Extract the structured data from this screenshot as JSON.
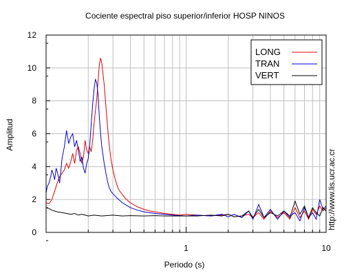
{
  "chart_data": {
    "type": "line",
    "title": "Cociente espectral piso superior/inferior  HOSP NINOS",
    "xlabel": "Periodo (s)",
    "ylabel": "Amplitud",
    "side_label": "http://www.lis.ucr.ac.cr",
    "xscale": "log",
    "xlim": [
      0.1,
      10
    ],
    "ylim": [
      0,
      12
    ],
    "grid": true,
    "legend_position": "top-right",
    "x_tick_labels": [
      {
        "value": 1,
        "label": "1"
      },
      {
        "value": 10,
        "label": "10"
      }
    ],
    "y_tick_labels": [
      {
        "value": 0,
        "label": "0"
      },
      {
        "value": 2,
        "label": "2"
      },
      {
        "value": 4,
        "label": "4"
      },
      {
        "value": 6,
        "label": "6"
      },
      {
        "value": 8,
        "label": "8"
      },
      {
        "value": 10,
        "label": "10"
      },
      {
        "value": 12,
        "label": "12"
      }
    ],
    "series": [
      {
        "name": "LONG",
        "color": "#e00000",
        "x": [
          0.1,
          0.105,
          0.11,
          0.115,
          0.12,
          0.125,
          0.13,
          0.135,
          0.14,
          0.145,
          0.15,
          0.155,
          0.16,
          0.165,
          0.17,
          0.175,
          0.18,
          0.185,
          0.19,
          0.195,
          0.2,
          0.205,
          0.21,
          0.215,
          0.22,
          0.225,
          0.23,
          0.235,
          0.24,
          0.245,
          0.25,
          0.26,
          0.27,
          0.28,
          0.29,
          0.3,
          0.31,
          0.32,
          0.33,
          0.35,
          0.37,
          0.4,
          0.45,
          0.5,
          0.55,
          0.6,
          0.7,
          0.8,
          0.9,
          1.0,
          1.2,
          1.5,
          1.8,
          2.0,
          2.2,
          2.5,
          2.8,
          3.0,
          3.3,
          3.6,
          4.0,
          4.5,
          5.0,
          5.5,
          6.0,
          6.5,
          7.0,
          7.5,
          8.0,
          8.5,
          9.0,
          9.5,
          10.0
        ],
        "y": [
          1.8,
          1.75,
          2.0,
          2.5,
          3.0,
          3.4,
          3.6,
          3.8,
          4.2,
          3.9,
          4.3,
          4.8,
          4.2,
          5.0,
          5.2,
          4.8,
          4.2,
          4.6,
          5.6,
          5.0,
          4.8,
          5.2,
          4.9,
          5.6,
          6.6,
          7.4,
          8.1,
          9.2,
          10.2,
          10.6,
          10.3,
          9.0,
          7.2,
          5.6,
          4.5,
          3.8,
          3.3,
          2.9,
          2.6,
          2.3,
          2.05,
          1.8,
          1.55,
          1.4,
          1.3,
          1.25,
          1.15,
          1.1,
          1.05,
          1.1,
          1.05,
          1.0,
          1.05,
          1.1,
          0.95,
          1.0,
          1.1,
          0.9,
          1.2,
          0.8,
          1.3,
          0.9,
          1.2,
          0.8,
          1.5,
          0.9,
          1.3,
          0.8,
          1.4,
          1.1,
          1.6,
          1.3,
          1.5
        ]
      },
      {
        "name": "TRAN",
        "color": "#0000d0",
        "x": [
          0.1,
          0.102,
          0.105,
          0.108,
          0.11,
          0.113,
          0.115,
          0.118,
          0.12,
          0.123,
          0.125,
          0.13,
          0.135,
          0.14,
          0.145,
          0.15,
          0.155,
          0.16,
          0.165,
          0.17,
          0.175,
          0.18,
          0.185,
          0.19,
          0.195,
          0.2,
          0.205,
          0.21,
          0.215,
          0.22,
          0.225,
          0.23,
          0.235,
          0.24,
          0.245,
          0.25,
          0.26,
          0.27,
          0.28,
          0.29,
          0.3,
          0.32,
          0.35,
          0.4,
          0.45,
          0.5,
          0.6,
          0.7,
          0.8,
          1.0,
          1.2,
          1.5,
          1.8,
          2.0,
          2.2,
          2.5,
          2.8,
          3.0,
          3.3,
          3.6,
          4.0,
          4.5,
          5.0,
          5.5,
          6.0,
          6.5,
          7.0,
          7.5,
          8.0,
          8.5,
          9.0,
          9.5,
          10.0
        ],
        "y": [
          2.4,
          2.8,
          3.0,
          3.4,
          3.8,
          3.5,
          3.2,
          3.9,
          3.7,
          3.3,
          3.0,
          4.5,
          5.2,
          6.2,
          5.4,
          5.8,
          6.0,
          5.2,
          5.6,
          5.0,
          4.3,
          4.6,
          3.9,
          3.6,
          4.2,
          4.5,
          5.3,
          6.6,
          7.8,
          8.7,
          9.3,
          9.1,
          8.4,
          7.0,
          6.0,
          5.2,
          4.2,
          3.4,
          2.8,
          2.5,
          2.35,
          2.1,
          1.8,
          1.5,
          1.35,
          1.25,
          1.15,
          1.1,
          1.05,
          1.0,
          1.05,
          1.0,
          1.1,
          0.95,
          1.1,
          0.9,
          1.3,
          0.8,
          1.7,
          0.9,
          1.4,
          0.8,
          1.3,
          1.0,
          1.2,
          0.7,
          1.5,
          0.9,
          1.2,
          0.8,
          2.0,
          1.4,
          1.6
        ]
      },
      {
        "name": "VERT",
        "color": "#000000",
        "x": [
          0.1,
          0.105,
          0.11,
          0.12,
          0.13,
          0.14,
          0.15,
          0.16,
          0.17,
          0.18,
          0.19,
          0.2,
          0.22,
          0.25,
          0.3,
          0.35,
          0.4,
          0.5,
          0.6,
          0.7,
          0.8,
          1.0,
          1.2,
          1.5,
          1.8,
          2.0,
          2.2,
          2.5,
          2.8,
          3.0,
          3.3,
          3.6,
          4.0,
          4.5,
          5.0,
          5.5,
          6.0,
          6.5,
          7.0,
          7.5,
          8.0,
          8.5,
          9.0,
          9.5,
          10.0
        ],
        "y": [
          1.5,
          1.45,
          1.35,
          1.25,
          1.2,
          1.15,
          1.1,
          1.15,
          1.05,
          1.1,
          1.05,
          1.0,
          1.05,
          1.0,
          1.05,
          1.0,
          1.02,
          1.0,
          1.02,
          1.0,
          1.0,
          1.0,
          1.0,
          1.05,
          1.0,
          1.1,
          0.95,
          1.0,
          1.3,
          0.9,
          1.4,
          0.9,
          1.2,
          1.0,
          1.3,
          0.9,
          1.9,
          1.1,
          1.6,
          0.9,
          1.5,
          1.2,
          1.0,
          1.5,
          1.3
        ]
      }
    ]
  }
}
